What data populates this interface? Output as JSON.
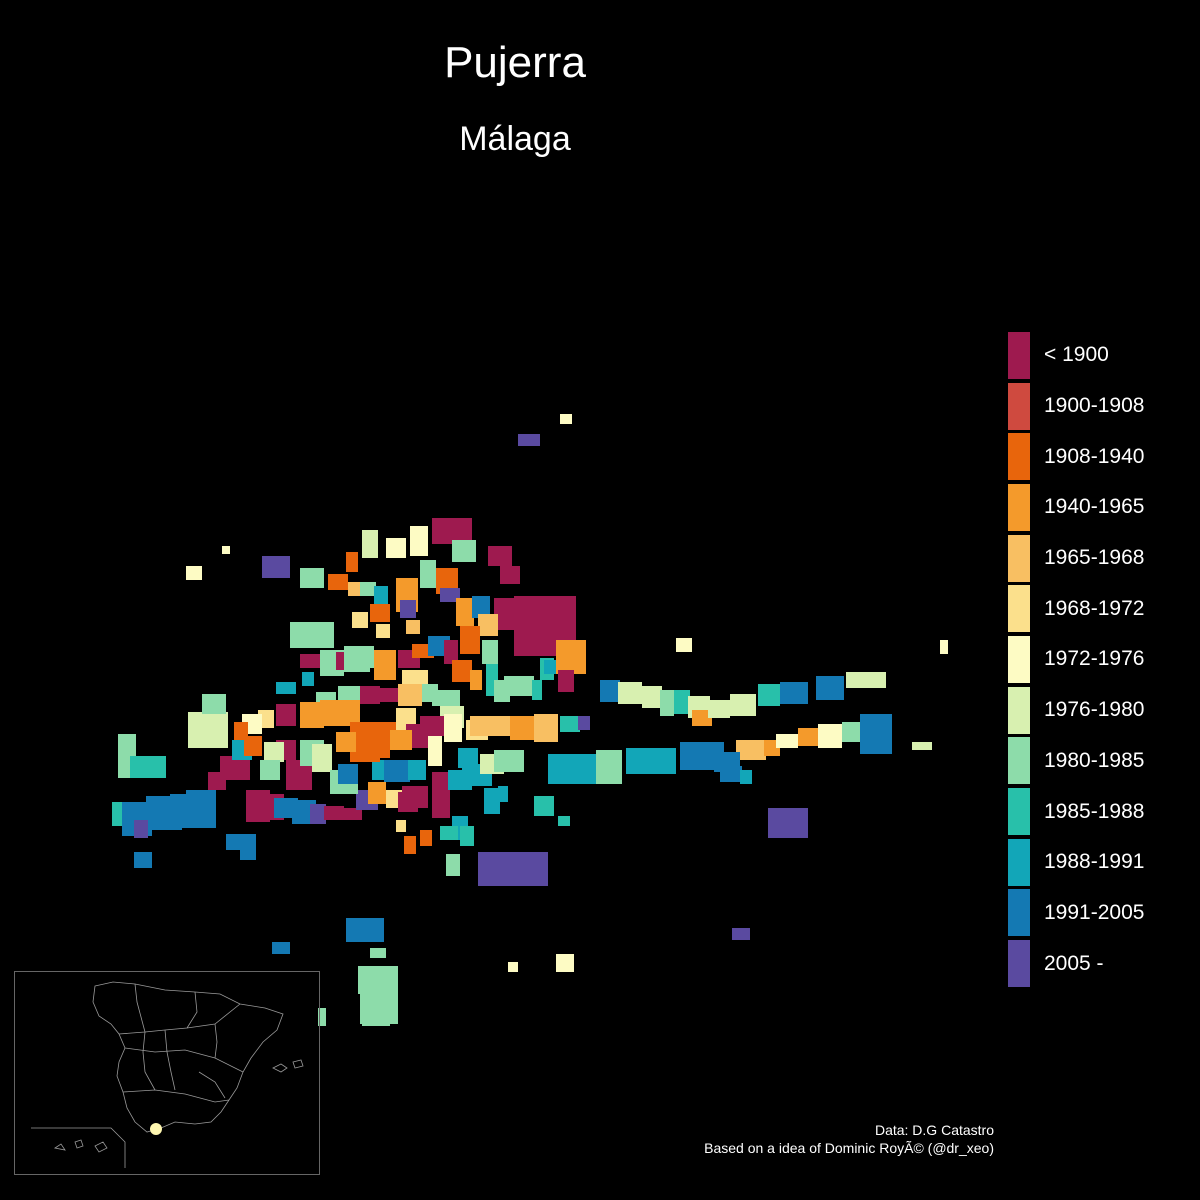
{
  "title": "Pujerra",
  "subtitle": "Málaga",
  "legend": {
    "items": [
      {
        "label": "< 1900",
        "color": "#9e1a4f"
      },
      {
        "label": "1900-1908",
        "color": "#cf4a3f"
      },
      {
        "label": "1908-1940",
        "color": "#e8650c"
      },
      {
        "label": "1940-1965",
        "color": "#f49a2b"
      },
      {
        "label": "1965-1968",
        "color": "#f8bf62"
      },
      {
        "label": "1968-1972",
        "color": "#fbe08c"
      },
      {
        "label": "1972-1976",
        "color": "#fdfbc4"
      },
      {
        "label": "1976-1980",
        "color": "#d8f0b0"
      },
      {
        "label": "1980-1985",
        "color": "#8ddcaa"
      },
      {
        "label": "1985-1988",
        "color": "#28c0aa"
      },
      {
        "label": "1988-1991",
        "color": "#12a6b8"
      },
      {
        "label": "1991-2005",
        "color": "#1479b3"
      },
      {
        "label": "2005 -",
        "color": "#5a4aa0"
      }
    ]
  },
  "caption": {
    "line1": "Data: D.G Catastro",
    "line2": "Based on a idea of Dominic RoyÃ© (@dr_xeo)"
  },
  "inset": {
    "marker_color": "#fff7b0"
  }
}
